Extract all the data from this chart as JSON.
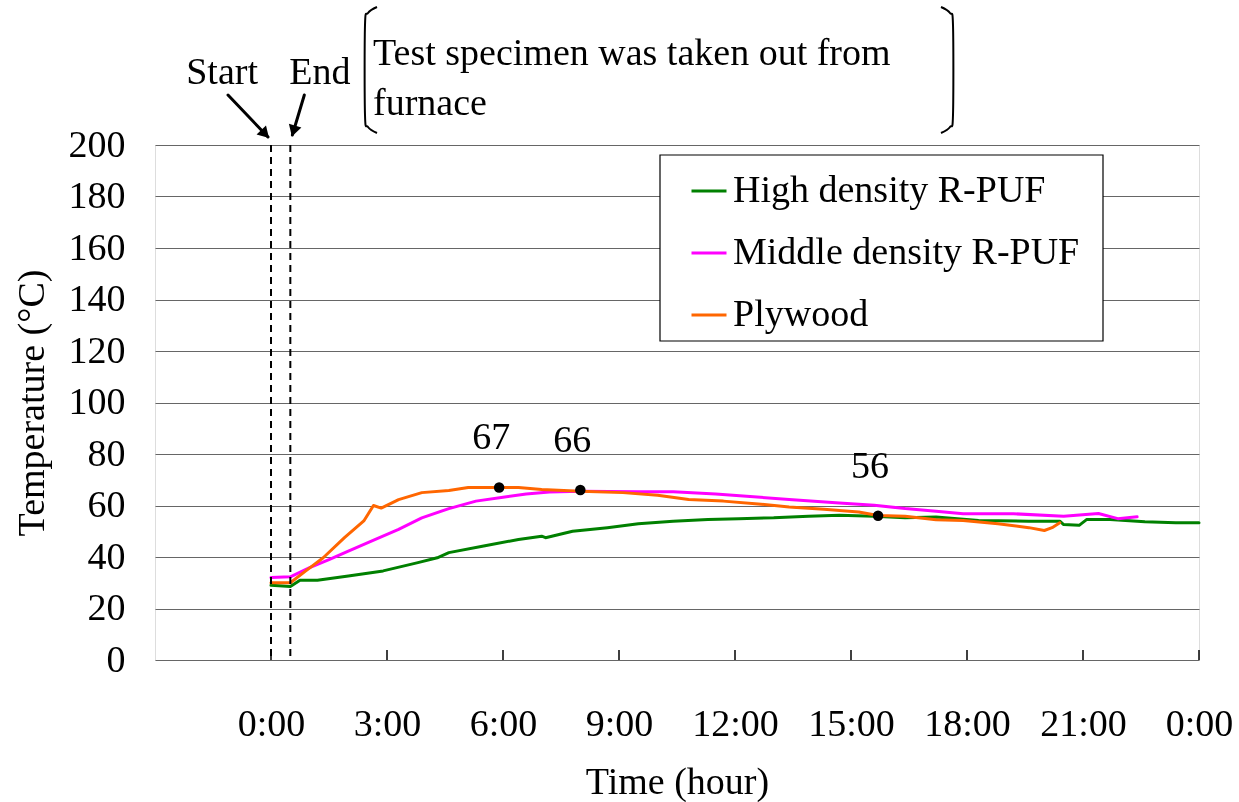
{
  "chart_data": {
    "type": "line",
    "xlabel": "Time (hour)",
    "ylabel": "Temperature (°C)",
    "xlim": [
      -3,
      24
    ],
    "ylim": [
      0,
      200
    ],
    "xticks": [
      {
        "value": 0,
        "label": "0:00"
      },
      {
        "value": 3,
        "label": "3:00"
      },
      {
        "value": 6,
        "label": "6:00"
      },
      {
        "value": 9,
        "label": "9:00"
      },
      {
        "value": 12,
        "label": "12:00"
      },
      {
        "value": 15,
        "label": "15:00"
      },
      {
        "value": 18,
        "label": "18:00"
      },
      {
        "value": 21,
        "label": "21:00"
      },
      {
        "value": 24,
        "label": "0:00"
      }
    ],
    "yticks": [
      0,
      20,
      40,
      60,
      80,
      100,
      120,
      140,
      160,
      180,
      200
    ],
    "grid": "y",
    "legend": "top right",
    "series": [
      {
        "name": "High density R-PUF",
        "color": "#008000",
        "x": [
          0,
          0.5,
          0.75,
          1.2,
          2.0,
          2.9,
          3.8,
          4.3,
          4.6,
          5.5,
          6.4,
          7.0,
          7.1,
          7.8,
          8.7,
          9.5,
          10.4,
          11.3,
          12.1,
          13.0,
          13.9,
          14.7,
          15.6,
          16.4,
          17.2,
          18.3,
          19.6,
          20.4,
          20.5,
          20.9,
          21.1,
          21.7,
          22.6,
          23.4,
          24.0
        ],
        "values": [
          29,
          28.5,
          31,
          31,
          32.6,
          34.6,
          37.8,
          39.7,
          41.7,
          44.3,
          46.8,
          48.1,
          47.5,
          50,
          51.4,
          52.9,
          53.9,
          54.6,
          54.9,
          55.2,
          55.8,
          56.2,
          55.8,
          55.2,
          55.5,
          54.2,
          53.9,
          53.9,
          52.6,
          52.3,
          54.6,
          54.6,
          53.7,
          53.3,
          53.3
        ]
      },
      {
        "name": "Middle density R-PUF",
        "color": "#ff00ff",
        "x": [
          0,
          0.5,
          1.0,
          1.5,
          2.0,
          2.7,
          3.3,
          3.9,
          4.6,
          5.3,
          6.0,
          6.6,
          7.2,
          8.0,
          9.5,
          10.4,
          11.5,
          12.3,
          13.4,
          14.7,
          15.6,
          16.4,
          17.2,
          17.9,
          19.2,
          20.5,
          21.4,
          21.9,
          22.4
        ],
        "values": [
          32,
          32.3,
          35.9,
          39,
          42.3,
          46.8,
          50.7,
          55.2,
          58.8,
          61.7,
          63.2,
          64.5,
          65.2,
          65.5,
          65.3,
          65.3,
          64.5,
          63.6,
          62.3,
          61,
          60.1,
          58.8,
          57.8,
          56.8,
          56.8,
          55.8,
          56.9,
          54.9,
          55.6
        ]
      },
      {
        "name": "Plywood",
        "color": "#ff6600",
        "x": [
          0,
          0.5,
          0.9,
          1.35,
          1.9,
          2.4,
          2.65,
          2.85,
          3.3,
          3.9,
          4.6,
          5.1,
          5.9,
          6.4,
          7.0,
          8.0,
          9.1,
          10.0,
          10.8,
          11.7,
          12.6,
          13.4,
          14.3,
          15.2,
          15.7,
          16.4,
          17.2,
          17.9,
          18.8,
          19.6,
          20.0,
          20.2,
          20.4
        ],
        "values": [
          30,
          30,
          34.6,
          39.7,
          47.5,
          54,
          60,
          59,
          62.3,
          65,
          65.8,
          67,
          67,
          67,
          66.2,
          65.5,
          65,
          64,
          62.3,
          61.7,
          60.6,
          59.4,
          58.5,
          57.5,
          56.1,
          55.8,
          54.5,
          54.2,
          52.9,
          51.4,
          50.3,
          51.4,
          53.3
        ]
      },
      {
        "type": "scatter",
        "color": "#000000",
        "x": [
          5.9,
          8.0,
          15.7
        ],
        "values": [
          67,
          66,
          56
        ],
        "value_labels": [
          "67",
          "66",
          "56"
        ]
      }
    ],
    "ref_lines": [
      {
        "axis": "x",
        "value": 0,
        "label": "Start",
        "line_style": "dashed",
        "color": "#000000"
      },
      {
        "axis": "x",
        "value": 0.5,
        "label": "End",
        "line_style": "dashed",
        "color": "#000000"
      }
    ],
    "annotations": [
      "Test specimen was taken out from furnace"
    ]
  }
}
